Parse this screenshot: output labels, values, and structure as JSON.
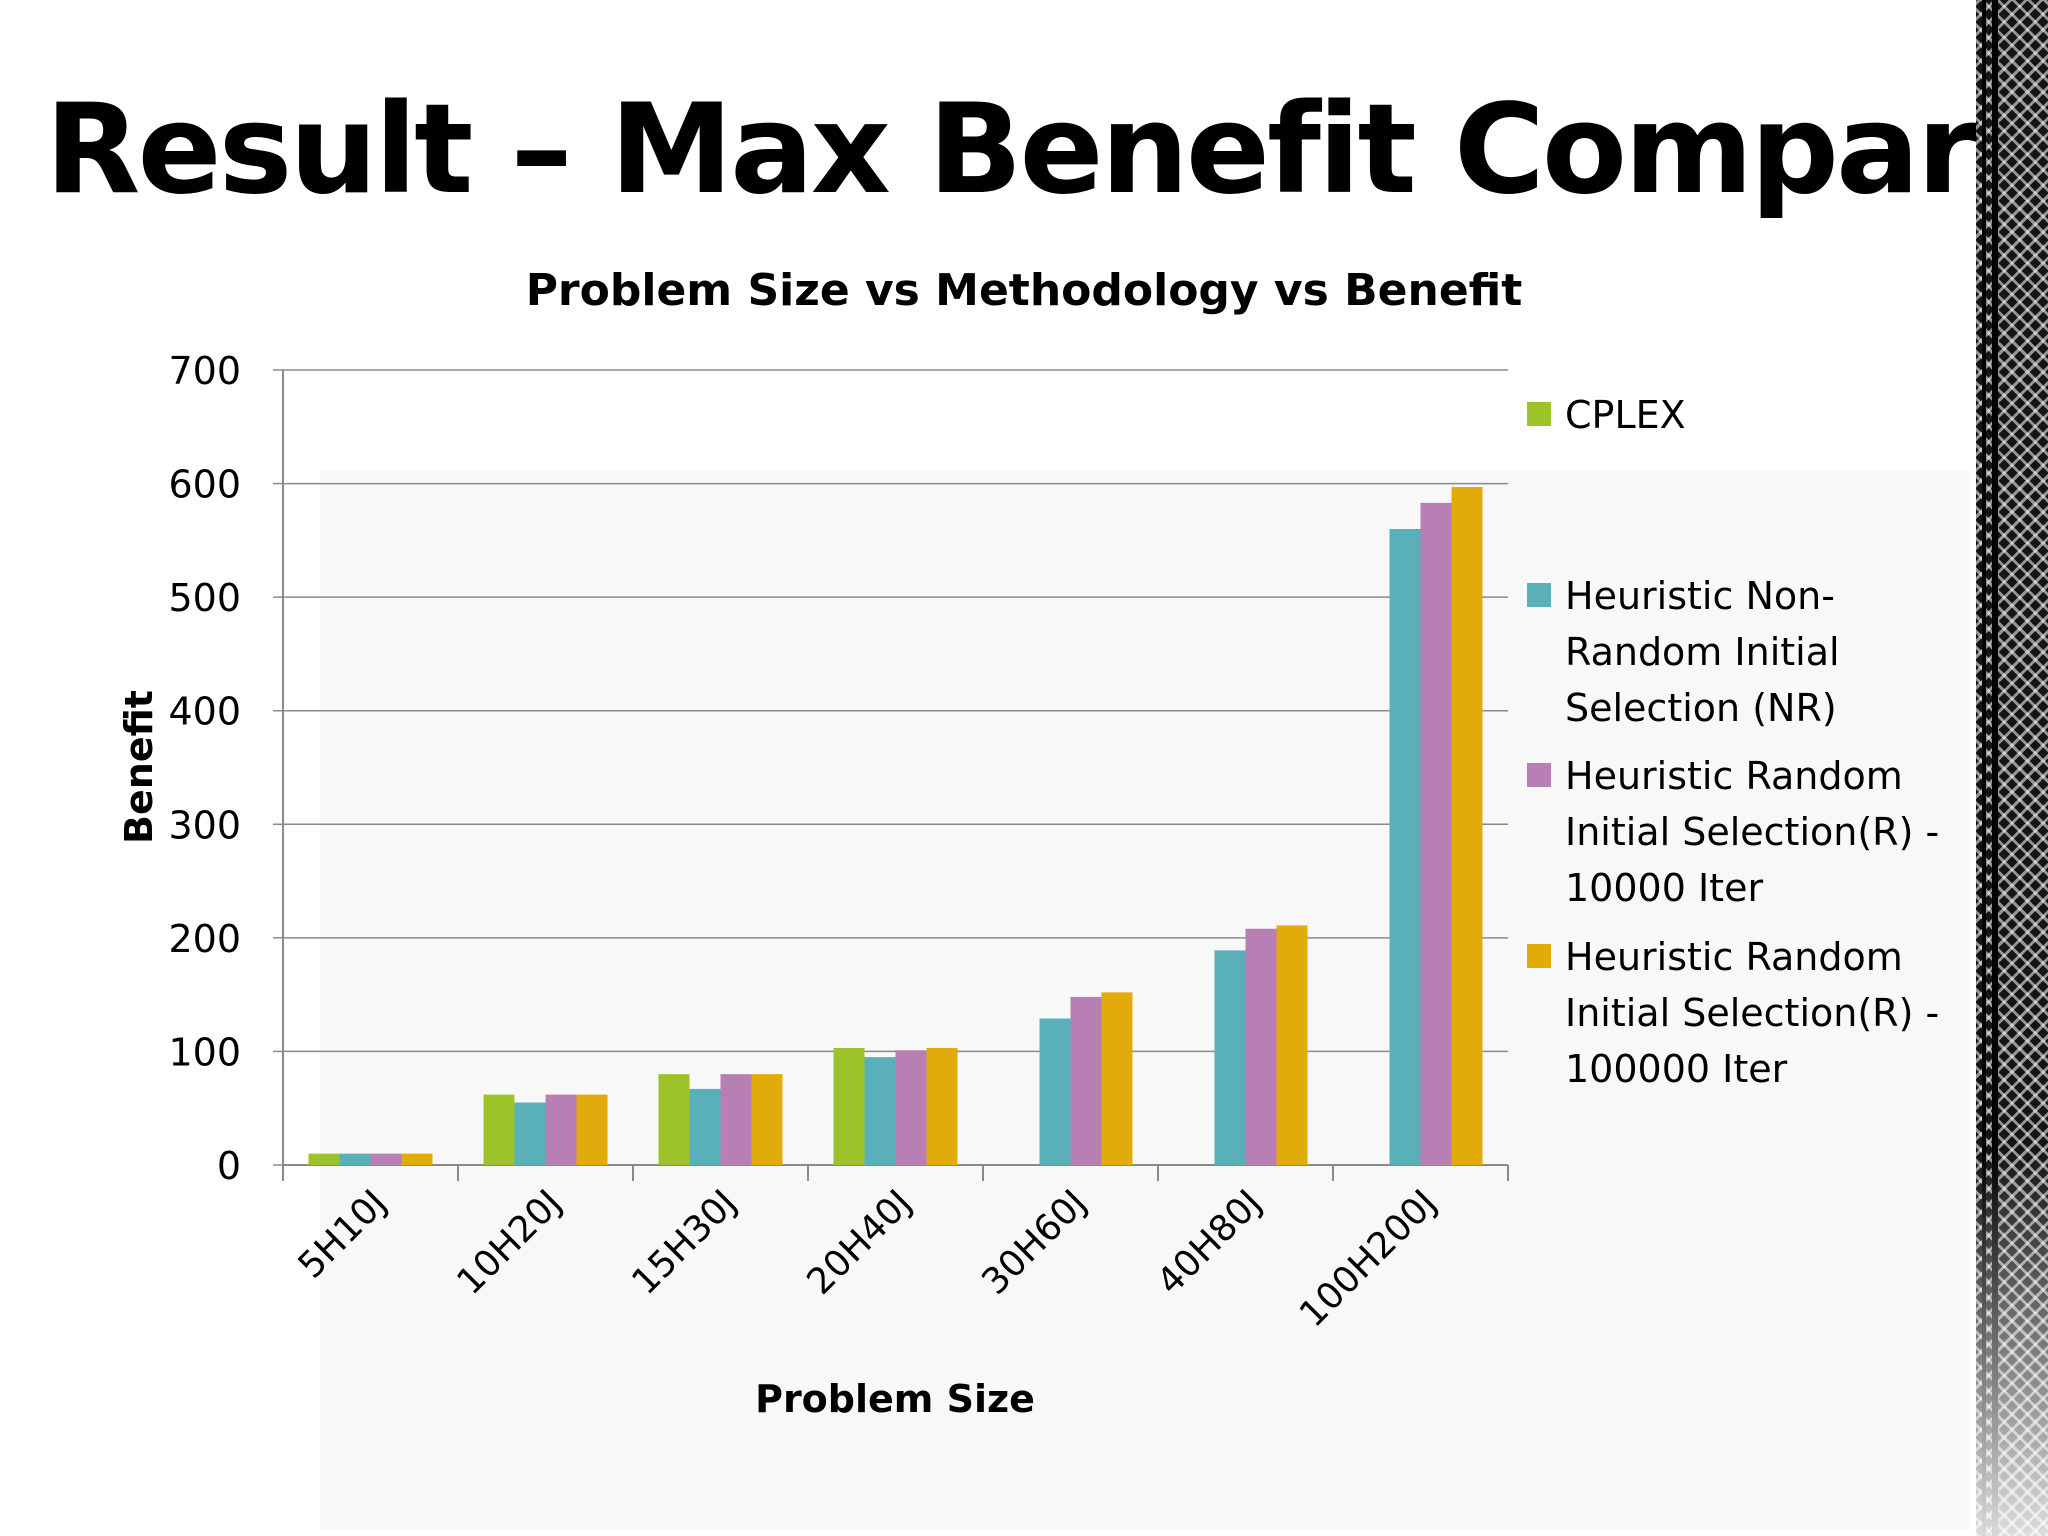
{
  "slide": {
    "title": "Result – Max Benefit Comparison"
  },
  "chart_data": {
    "type": "bar",
    "title": "Problem Size vs Methodology vs Benefit",
    "xlabel": "Problem Size",
    "ylabel": "Benefit",
    "ylim": [
      0,
      700
    ],
    "yticks": [
      0,
      100,
      200,
      300,
      400,
      500,
      600,
      700
    ],
    "grid": true,
    "legend_position": "right",
    "categories": [
      "5H10J",
      "10H20J",
      "15H30J",
      "20H40J",
      "30H60J",
      "40H80J",
      "100H200J"
    ],
    "series": [
      {
        "name": "CPLEX",
        "color": "#9dc32b",
        "values": [
          10,
          62,
          80,
          103,
          null,
          null,
          null
        ]
      },
      {
        "name": "Heuristic Non-Random Initial Selection (NR)",
        "color": "#5ab0b8",
        "legend_lines": [
          "Heuristic Non-",
          "Random Initial",
          "Selection (NR)"
        ],
        "values": [
          10,
          55,
          67,
          95,
          129,
          189,
          560
        ]
      },
      {
        "name": "Heuristic Random Initial Selection(R) - 10000 Iter",
        "color": "#b77fb4",
        "legend_lines": [
          "Heuristic Random",
          "Initial Selection(R) -",
          "10000 Iter"
        ],
        "values": [
          10,
          62,
          80,
          101,
          148,
          208,
          583
        ]
      },
      {
        "name": "Heuristic Random Initial Selection(R) - 100000 Iter",
        "color": "#e0ab0b",
        "legend_lines": [
          "Heuristic Random",
          "Initial Selection(R) -",
          "100000 Iter"
        ],
        "values": [
          10,
          62,
          80,
          103,
          152,
          211,
          597
        ]
      }
    ]
  }
}
